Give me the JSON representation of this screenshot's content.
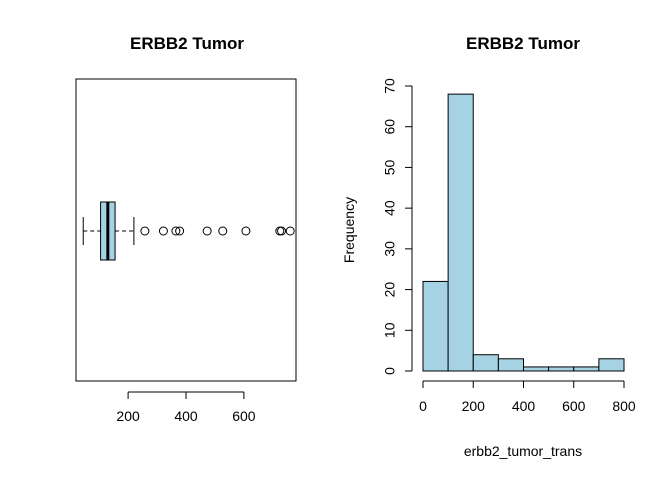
{
  "chart_data": [
    {
      "type": "boxplot",
      "title": "ERBB2 Tumor",
      "orientation": "horizontal",
      "xlabel": "",
      "ylabel": "",
      "xlim": [
        20,
        780
      ],
      "x_ticks": [
        200,
        400,
        600
      ],
      "fill_color": "#a6d3e3",
      "box": {
        "whisker_low": 45,
        "q1": 105,
        "median": 130,
        "q3": 155,
        "whisker_high": 220
      },
      "outliers": [
        258,
        322,
        365,
        378,
        473,
        527,
        607,
        724,
        730,
        760
      ],
      "frame": true
    },
    {
      "type": "histogram",
      "title": "ERBB2 Tumor",
      "xlabel": "erbb2_tumor_trans",
      "ylabel": "Frequency",
      "xlim": [
        0,
        800
      ],
      "ylim": [
        0,
        70
      ],
      "x_ticks": [
        0,
        200,
        400,
        600,
        800
      ],
      "y_ticks": [
        0,
        10,
        20,
        30,
        40,
        50,
        60,
        70
      ],
      "fill_color": "#a6d3e3",
      "bins": [
        {
          "start": 0,
          "end": 100,
          "count": 22
        },
        {
          "start": 100,
          "end": 200,
          "count": 68
        },
        {
          "start": 200,
          "end": 300,
          "count": 4
        },
        {
          "start": 300,
          "end": 400,
          "count": 3
        },
        {
          "start": 400,
          "end": 500,
          "count": 1
        },
        {
          "start": 500,
          "end": 600,
          "count": 1
        },
        {
          "start": 600,
          "end": 700,
          "count": 1
        },
        {
          "start": 700,
          "end": 800,
          "count": 3
        }
      ]
    }
  ]
}
